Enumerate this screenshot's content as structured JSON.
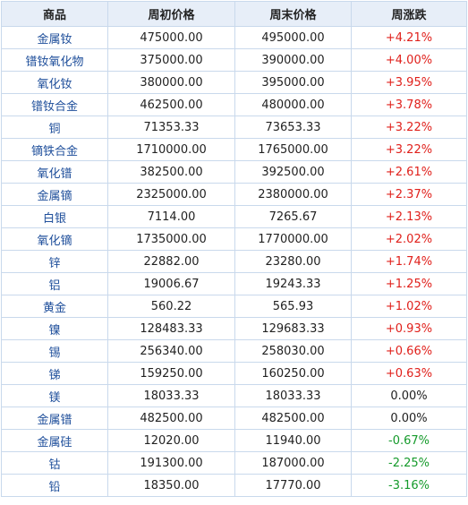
{
  "table": {
    "headers": [
      "商品",
      "周初价格",
      "周末价格",
      "周涨跌"
    ],
    "rows": [
      {
        "name": "金属钕",
        "start": "475000.00",
        "end": "495000.00",
        "change": "+4.21%",
        "dir": "up"
      },
      {
        "name": "镨钕氧化物",
        "start": "375000.00",
        "end": "390000.00",
        "change": "+4.00%",
        "dir": "up"
      },
      {
        "name": "氧化钕",
        "start": "380000.00",
        "end": "395000.00",
        "change": "+3.95%",
        "dir": "up"
      },
      {
        "name": "镨钕合金",
        "start": "462500.00",
        "end": "480000.00",
        "change": "+3.78%",
        "dir": "up"
      },
      {
        "name": "铜",
        "start": "71353.33",
        "end": "73653.33",
        "change": "+3.22%",
        "dir": "up"
      },
      {
        "name": "镝铁合金",
        "start": "1710000.00",
        "end": "1765000.00",
        "change": "+3.22%",
        "dir": "up"
      },
      {
        "name": "氧化镨",
        "start": "382500.00",
        "end": "392500.00",
        "change": "+2.61%",
        "dir": "up"
      },
      {
        "name": "金属镝",
        "start": "2325000.00",
        "end": "2380000.00",
        "change": "+2.37%",
        "dir": "up"
      },
      {
        "name": "白银",
        "start": "7114.00",
        "end": "7265.67",
        "change": "+2.13%",
        "dir": "up"
      },
      {
        "name": "氧化镝",
        "start": "1735000.00",
        "end": "1770000.00",
        "change": "+2.02%",
        "dir": "up"
      },
      {
        "name": "锌",
        "start": "22882.00",
        "end": "23280.00",
        "change": "+1.74%",
        "dir": "up"
      },
      {
        "name": "铝",
        "start": "19006.67",
        "end": "19243.33",
        "change": "+1.25%",
        "dir": "up"
      },
      {
        "name": "黄金",
        "start": "560.22",
        "end": "565.93",
        "change": "+1.02%",
        "dir": "up"
      },
      {
        "name": "镍",
        "start": "128483.33",
        "end": "129683.33",
        "change": "+0.93%",
        "dir": "up"
      },
      {
        "name": "锡",
        "start": "256340.00",
        "end": "258030.00",
        "change": "+0.66%",
        "dir": "up"
      },
      {
        "name": "锑",
        "start": "159250.00",
        "end": "160250.00",
        "change": "+0.63%",
        "dir": "up"
      },
      {
        "name": "镁",
        "start": "18033.33",
        "end": "18033.33",
        "change": "0.00%",
        "dir": "flat"
      },
      {
        "name": "金属镨",
        "start": "482500.00",
        "end": "482500.00",
        "change": "0.00%",
        "dir": "flat"
      },
      {
        "name": "金属硅",
        "start": "12020.00",
        "end": "11940.00",
        "change": "-0.67%",
        "dir": "down"
      },
      {
        "name": "钴",
        "start": "191300.00",
        "end": "187000.00",
        "change": "-2.25%",
        "dir": "down"
      },
      {
        "name": "铅",
        "start": "18350.00",
        "end": "17770.00",
        "change": "-3.16%",
        "dir": "down"
      }
    ]
  },
  "colors": {
    "header_bg": "#e7eef8",
    "border": "#c9d9ec",
    "name_text": "#1f4f9b",
    "up": "#e0201b",
    "down": "#159a2b",
    "flat": "#222222"
  }
}
